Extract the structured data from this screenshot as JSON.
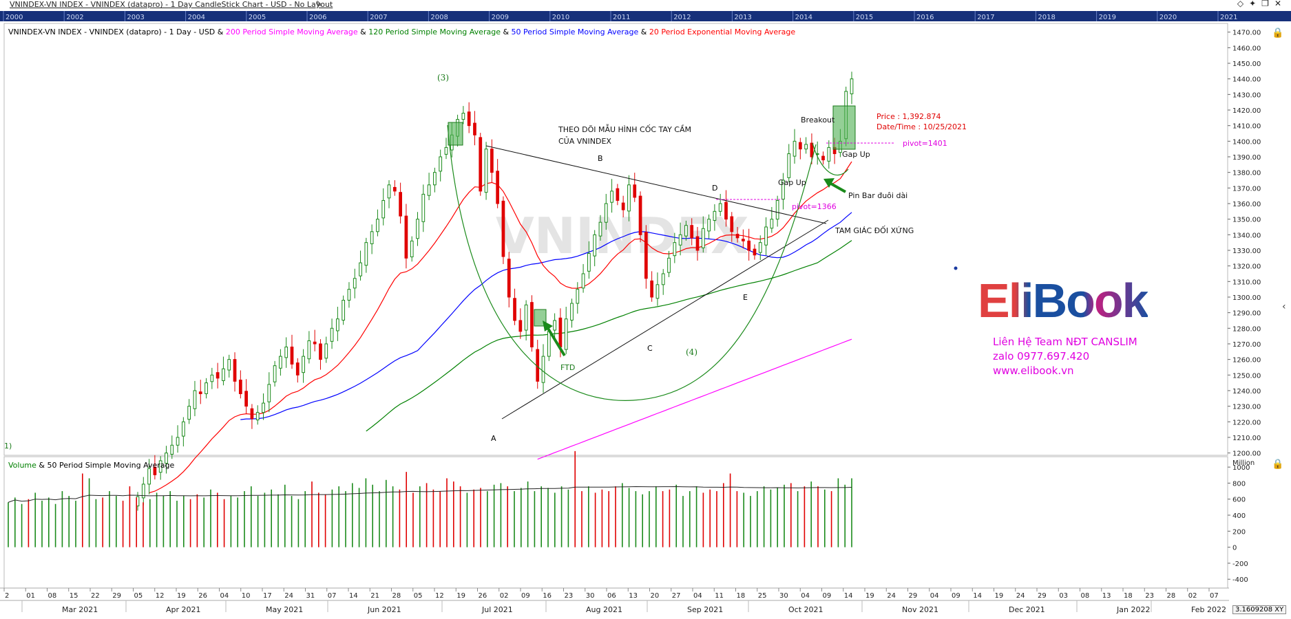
{
  "window": {
    "title": "VNINDEX-VN INDEX - VNINDEX (datapro) - 1 Day CandleStick Chart - USD - No Layout",
    "icons": [
      "pencil-icon",
      "diamond-icon",
      "pin-icon",
      "restore-icon",
      "close-icon"
    ]
  },
  "timeline": {
    "years": [
      "2000",
      "2002",
      "2003",
      "2004",
      "2005",
      "2006",
      "2007",
      "2008",
      "2009",
      "2010",
      "2011",
      "2012",
      "2013",
      "2014",
      "2015",
      "2016",
      "2017",
      "2018",
      "2019",
      "2020",
      "2021"
    ]
  },
  "legend": {
    "prefix": "VNINDEX-VN INDEX - VNINDEX (datapro) - 1 Day - USD & ",
    "sma200": "200 Period Simple Moving Average",
    "amp1": " & ",
    "sma120": "120 Period Simple Moving Average",
    "amp2": " & ",
    "sma50": "50 Period Simple Moving Average",
    "amp3": " & ",
    "ema20": "20 Period Exponential Moving Average",
    "colors": {
      "sma200": "#ff00ff",
      "sma120": "#008000",
      "sma50": "#0000ff",
      "ema20": "#ff0000"
    }
  },
  "volume_legend": {
    "volume": "Volume",
    "rest": " & 50 Period Simple Moving Average"
  },
  "annotations": {
    "wave3": "(3)",
    "wave4": "(4)",
    "left_cut": "1)",
    "watch_line1": "THEO DÕI MẪU HÌNH CỐC TAY CẦM",
    "watch_line2": "CỦA VNINDEX",
    "B": "B",
    "C": "C",
    "D": "D",
    "E": "E",
    "A": "A",
    "ftd": "FTD",
    "breakout": "Breakout",
    "price": "Price : 1,392.874",
    "datetime": "Date/Time : 10/25/2021",
    "pivot1401": "pivot=1401",
    "pivot1366": "pivot=1366",
    "gapup1": "Gap Up",
    "gapup2": "Gap Up",
    "pinbar": "Pin Bar đuôi dài",
    "triangle": "TAM GIÁC ĐỐI XỨNG",
    "watermark": "VNINDEX"
  },
  "brand": {
    "logo": "EliBook",
    "contact1": "Liên Hệ Team NĐT CANSLIM",
    "contact2": "zalo 0977.697.420",
    "contact3": "www.elibook.vn"
  },
  "footer": {
    "scale_value": "3.1609208",
    "scale_label": "XY"
  },
  "chart_data": [
    {
      "type": "candlestick",
      "title": "VNINDEX-VN INDEX - VNINDEX (datapro) - 1 Day - USD",
      "ylim": [
        1200,
        1475
      ],
      "yticks": [
        1200,
        1210,
        1220,
        1230,
        1240,
        1250,
        1260,
        1270,
        1280,
        1290,
        1300,
        1310,
        1320,
        1330,
        1340,
        1350,
        1360,
        1370,
        1380,
        1390,
        1400,
        1410,
        1420,
        1430,
        1440,
        1450,
        1460,
        1470
      ],
      "x_day_labels": [
        "2",
        "01",
        "08",
        "15",
        "22",
        "29",
        "05",
        "12",
        "19",
        "26",
        "04",
        "10",
        "17",
        "24",
        "31",
        "07",
        "14",
        "21",
        "28",
        "05",
        "12",
        "19",
        "26",
        "02",
        "09",
        "16",
        "23",
        "30",
        "06",
        "13",
        "20",
        "27",
        "04",
        "11",
        "18",
        "25",
        "30",
        "04",
        "09",
        "14",
        "19",
        "24",
        "29",
        "04",
        "09",
        "14",
        "19",
        "24",
        "29",
        "03",
        "08",
        "13",
        "18",
        "23",
        "28",
        "02",
        "07"
      ],
      "x_month_labels": [
        "Mar 2021",
        "Apr 2021",
        "May 2021",
        "Jun 2021",
        "Jul 2021",
        "Aug 2021",
        "Sep 2021",
        "Oct 2021",
        "Nov 2021",
        "Dec 2021",
        "Jan 2022",
        "Feb 2022"
      ],
      "series": [
        {
          "name": "200 Period Simple Moving Average",
          "color": "#ff00ff"
        },
        {
          "name": "120 Period Simple Moving Average",
          "color": "#008000"
        },
        {
          "name": "50 Period Simple Moving Average",
          "color": "#0000ff"
        },
        {
          "name": "20 Period Exponential Moving Average",
          "color": "#ff0000"
        }
      ],
      "closes": [
        1172,
        1180,
        1190,
        1186,
        1195,
        1200,
        1205,
        1210,
        1220,
        1230,
        1240,
        1238,
        1245,
        1250,
        1248,
        1254,
        1260,
        1246,
        1238,
        1230,
        1222,
        1226,
        1232,
        1244,
        1256,
        1262,
        1268,
        1257,
        1250,
        1262,
        1272,
        1270,
        1260,
        1270,
        1280,
        1286,
        1298,
        1305,
        1312,
        1322,
        1335,
        1342,
        1350,
        1362,
        1372,
        1368,
        1352,
        1325,
        1336,
        1350,
        1366,
        1372,
        1380,
        1390,
        1396,
        1404,
        1414,
        1418,
        1410,
        1404,
        1368,
        1395,
        1380,
        1360,
        1326,
        1300,
        1285,
        1278,
        1295,
        1268,
        1246,
        1262,
        1278,
        1285,
        1268,
        1286,
        1296,
        1305,
        1315,
        1328,
        1340,
        1348,
        1360,
        1368,
        1362,
        1356,
        1372,
        1364,
        1340,
        1312,
        1300,
        1308,
        1315,
        1325,
        1335,
        1340,
        1346,
        1338,
        1330,
        1344,
        1350,
        1355,
        1360,
        1350,
        1342,
        1338,
        1336,
        1330,
        1327,
        1335,
        1345,
        1350,
        1362,
        1375,
        1392,
        1400,
        1395,
        1398,
        1390,
        1392,
        1388,
        1396,
        1392,
        1400,
        1432,
        1440
      ],
      "key_levels": {
        "pivot_1": 1401,
        "pivot_2": 1366,
        "price": 1392.874,
        "date": "10/25/2021"
      }
    },
    {
      "type": "bar",
      "title": "Volume & 50 Period Simple Moving Average",
      "ylabel": "Million",
      "ylim": [
        -500,
        1100
      ],
      "yticks": [
        -400,
        -200,
        0,
        200,
        400,
        600,
        800,
        1000
      ],
      "values": [
        560,
        620,
        540,
        600,
        680,
        580,
        620,
        540,
        700,
        640,
        580,
        920,
        860,
        600,
        620,
        700,
        640,
        580,
        760,
        620,
        560,
        600,
        680,
        640,
        700,
        580,
        640,
        600,
        660,
        620,
        720,
        680,
        600,
        640,
        620,
        700,
        760,
        640,
        680,
        720,
        660,
        780,
        640,
        600,
        700,
        820,
        680,
        660,
        720,
        760,
        700,
        800,
        740,
        860,
        780,
        700,
        840,
        760,
        720,
        940,
        680,
        760,
        800,
        720,
        700,
        860,
        820,
        760,
        680,
        720,
        740,
        700,
        780,
        800,
        760,
        700,
        740,
        820,
        700,
        760,
        740,
        680,
        760,
        720,
        1200,
        700,
        760,
        680,
        720,
        700,
        760,
        800,
        740,
        700,
        660,
        700,
        760,
        700,
        720,
        780,
        640,
        700,
        760,
        680,
        720,
        700,
        800,
        920,
        700,
        680,
        640,
        700,
        760,
        720,
        740,
        780,
        800,
        700,
        760,
        820,
        760,
        720,
        700,
        860,
        780,
        860
      ]
    }
  ]
}
